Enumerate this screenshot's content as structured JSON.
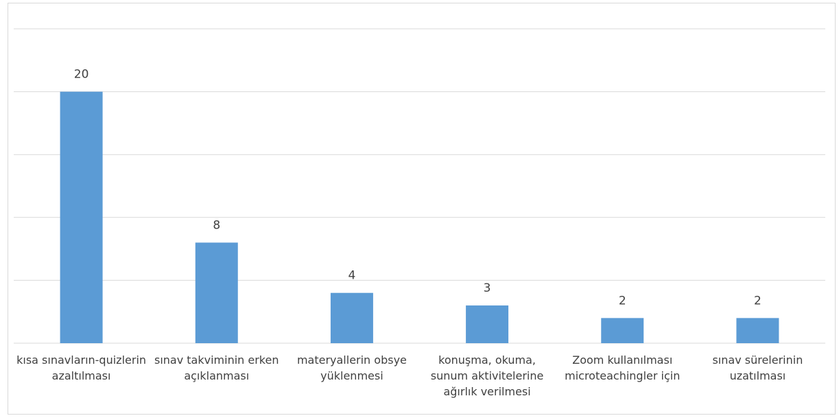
{
  "chart_data": {
    "type": "bar",
    "categories": [
      "kısa sınavların-quizlerin azaltılması",
      "sınav takviminin erken açıklanması",
      "materyallerin obsye yüklenmesi",
      "konuşma, okuma, sunum aktivitelerine ağırlık verilmesi",
      "Zoom kullanılması microteachingler için",
      "sınav sürelerinin uzatılması"
    ],
    "values": [
      20,
      8,
      4,
      3,
      2,
      2
    ],
    "color": "#5b9bd5",
    "ylim": [
      0,
      25
    ],
    "yticks": [
      0,
      5,
      10,
      15,
      20,
      25
    ],
    "grid": true
  }
}
